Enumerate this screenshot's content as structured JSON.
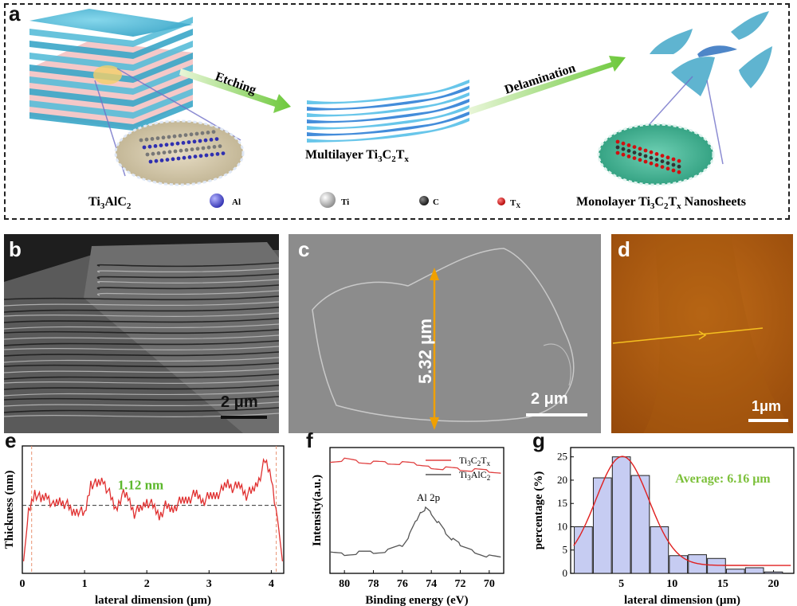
{
  "panel_a": {
    "label": "a",
    "arrow_etching": "Etching",
    "arrow_delamination": "Delamination",
    "caption_max": "Ti3AlC2",
    "caption_multilayer": "Multilayer Ti3C2Tx",
    "caption_monolayer": "Monolayer Ti3C2Tx Nanosheets",
    "legend": [
      {
        "symbol": "Al",
        "color": "#5a5ad6"
      },
      {
        "symbol": "Ti",
        "color": "#d0d0d0"
      },
      {
        "symbol": "C",
        "color": "#333333"
      },
      {
        "symbol": "Tx",
        "color": "#e01010"
      }
    ]
  },
  "panel_b": {
    "label": "b",
    "scalebar": "2 μm"
  },
  "panel_c": {
    "label": "c",
    "scalebar": "2 μm",
    "measure": "5.32 μm"
  },
  "panel_d": {
    "label": "d",
    "scalebar": "1μm"
  },
  "panel_e": {
    "label": "e",
    "annotation": "1.12 nm"
  },
  "panel_f": {
    "label": "f",
    "peak_label": "Al 2p"
  },
  "panel_g": {
    "label": "g",
    "annotation": "Average: 6.16 μm"
  },
  "chart_data": [
    {
      "panel": "e",
      "type": "line",
      "xlabel": "lateral dimension (μm)",
      "ylabel": "Thickness (nm)",
      "xlim": [
        0,
        4.2
      ],
      "xticks": [
        "0",
        "1",
        "2",
        "3",
        "4"
      ],
      "x": [
        0.02,
        0.1,
        0.2,
        0.3,
        0.4,
        0.5,
        0.6,
        0.7,
        0.8,
        0.9,
        1.0,
        1.1,
        1.2,
        1.3,
        1.4,
        1.5,
        1.6,
        1.7,
        1.8,
        1.9,
        2.0,
        2.1,
        2.2,
        2.3,
        2.4,
        2.5,
        2.6,
        2.7,
        2.8,
        2.9,
        3.0,
        3.1,
        3.2,
        3.3,
        3.4,
        3.5,
        3.6,
        3.7,
        3.8,
        3.9,
        4.0,
        4.1,
        4.18
      ],
      "y": [
        0.2,
        1.0,
        1.35,
        1.2,
        1.3,
        1.1,
        1.2,
        1.15,
        1.0,
        1.05,
        0.95,
        1.5,
        1.45,
        1.55,
        1.3,
        1.05,
        1.3,
        1.25,
        1.0,
        1.05,
        1.2,
        1.1,
        0.95,
        1.1,
        1.05,
        1.15,
        1.2,
        1.25,
        1.3,
        1.2,
        1.25,
        1.3,
        1.35,
        1.5,
        1.4,
        1.45,
        1.3,
        1.35,
        1.55,
        1.85,
        1.6,
        0.9,
        0.2
      ],
      "reference_line": 1.12,
      "reference_label": "1.12 nm"
    },
    {
      "panel": "f",
      "type": "line",
      "xlabel": "Binding energy (eV)",
      "ylabel": "Intensity(a.u.)",
      "xlim": [
        81,
        69
      ],
      "xticks": [
        "80",
        "78",
        "76",
        "74",
        "72",
        "70"
      ],
      "series": [
        {
          "name": "Ti3C2Tx",
          "color": "#e04040",
          "x": [
            81,
            80,
            79,
            78,
            77,
            76,
            75,
            74,
            73,
            72,
            71,
            70,
            69
          ],
          "y": [
            0.9,
            0.91,
            0.89,
            0.88,
            0.875,
            0.87,
            0.86,
            0.85,
            0.84,
            0.83,
            0.82,
            0.81,
            0.8
          ]
        },
        {
          "name": "Ti3AlC2",
          "color": "#555555",
          "x": [
            81,
            80,
            79,
            78,
            77,
            76,
            75.5,
            75,
            74.7,
            74.4,
            74,
            73.5,
            73,
            72.5,
            72,
            71,
            70,
            69
          ],
          "y": [
            0.17,
            0.16,
            0.17,
            0.17,
            0.18,
            0.22,
            0.3,
            0.42,
            0.5,
            0.52,
            0.48,
            0.4,
            0.32,
            0.26,
            0.22,
            0.18,
            0.14,
            0.12
          ]
        }
      ],
      "peak_label": "Al 2p"
    },
    {
      "panel": "g",
      "type": "bar",
      "xlabel": "lateral dimension (μm)",
      "ylabel": "percentage (%)",
      "xlim": [
        0,
        22
      ],
      "ylim": [
        0,
        27
      ],
      "xticks": [
        "5",
        "10",
        "15",
        "20"
      ],
      "yticks": [
        "0",
        "5",
        "10",
        "15",
        "20",
        "25"
      ],
      "categories": [
        1.25,
        3.125,
        5.0,
        6.875,
        8.75,
        10.625,
        12.5,
        14.375,
        16.25,
        18.125,
        20.0,
        21.875
      ],
      "values": [
        10,
        20.5,
        25,
        21,
        10,
        3.8,
        4,
        3.2,
        0.9,
        1.2,
        0.3,
        0
      ],
      "fit_curve": true,
      "annotation": "Average: 6.16 μm"
    }
  ]
}
